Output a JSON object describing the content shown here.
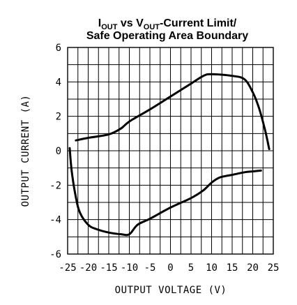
{
  "chart_data": {
    "type": "line",
    "title": {
      "line1": {
        "p1": "I",
        "s1": "OUT",
        "p2": " vs V",
        "s2": "OUT",
        "p3": "-Current Limit/"
      },
      "line2": "Safe Operating Area Boundary"
    },
    "xlabel": "OUTPUT VOLTAGE (V)",
    "ylabel": "OUTPUT CURRENT (A)",
    "xlim": [
      -25,
      25
    ],
    "ylim": [
      -6,
      6
    ],
    "x_ticks": [
      -25,
      -20,
      -15,
      -10,
      -5,
      0,
      5,
      10,
      15,
      20,
      25
    ],
    "x_tick_labels": [
      "-25",
      "-20",
      "-15",
      "-10",
      "-5",
      "0",
      "5",
      "10",
      "15",
      "20",
      "25"
    ],
    "y_ticks": [
      6,
      4,
      2,
      0,
      -2,
      -4,
      -6
    ],
    "y_tick_labels": [
      "6",
      "4",
      "2",
      "0",
      "-2",
      "-4",
      "-6"
    ],
    "grid": true,
    "series": [
      {
        "x": [
          -23,
          -20,
          -15,
          -12,
          -10,
          -5,
          0,
          5,
          8,
          10,
          15,
          18,
          20,
          21.5,
          23,
          24
        ],
        "y": [
          0.6,
          0.75,
          0.95,
          1.3,
          1.7,
          2.4,
          3.15,
          3.9,
          4.35,
          4.45,
          4.35,
          4.15,
          3.4,
          2.5,
          1.2,
          0.1
        ]
      },
      {
        "x": [
          -24.5,
          -24,
          -23,
          -22,
          -20,
          -18,
          -15,
          -12,
          -10,
          -8,
          -5,
          0,
          5,
          8,
          10,
          12,
          15,
          18,
          20,
          22
        ],
        "y": [
          0.15,
          -1.2,
          -2.7,
          -3.6,
          -4.3,
          -4.55,
          -4.75,
          -4.85,
          -4.85,
          -4.3,
          -3.95,
          -3.3,
          -2.75,
          -2.3,
          -1.85,
          -1.55,
          -1.4,
          -1.25,
          -1.2,
          -1.15
        ]
      }
    ]
  }
}
